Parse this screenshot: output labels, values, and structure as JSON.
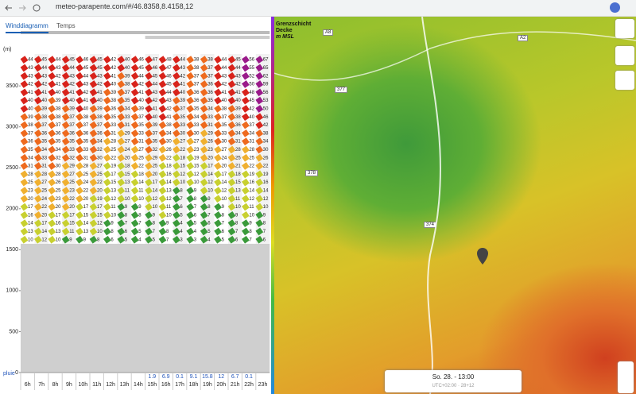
{
  "browser": {
    "url": "meteo-parapente.com/#/46.8358,8.4158,12"
  },
  "tabs": [
    "Winddiagramm",
    "Temps"
  ],
  "winddiagram": {
    "unit": "(m)",
    "rain_label": "pluie",
    "yticks": [
      0,
      500,
      1000,
      1500,
      2000,
      2500,
      3000,
      3500
    ],
    "hours": [
      "6h",
      "7h",
      "8h",
      "9h",
      "10h",
      "11h",
      "12h",
      "13h",
      "14h",
      "15h",
      "16h",
      "17h",
      "18h",
      "19h",
      "20h",
      "21h",
      "22h",
      "23h"
    ],
    "rain": [
      null,
      null,
      null,
      null,
      null,
      null,
      null,
      null,
      null,
      1.9,
      6.9,
      0.1,
      9.1,
      15.8,
      12,
      6.7,
      0.1,
      null
    ],
    "speeds": [
      [
        44,
        43,
        43,
        42,
        41,
        40,
        40,
        39,
        38,
        37,
        36,
        35,
        34,
        31,
        28,
        25,
        23,
        20,
        17,
        16,
        14,
        13,
        10
      ],
      [
        45,
        44,
        43,
        42,
        41,
        40,
        39,
        38,
        37,
        36,
        35,
        34,
        33,
        31,
        28,
        27,
        25,
        24,
        22,
        20,
        17,
        14,
        12
      ],
      [
        44,
        43,
        42,
        41,
        40,
        39,
        38,
        38,
        37,
        36,
        35,
        34,
        32,
        30,
        28,
        26,
        25,
        23,
        20,
        17,
        16,
        13,
        10
      ],
      [
        45,
        44,
        43,
        42,
        41,
        40,
        39,
        37,
        37,
        36,
        35,
        33,
        32,
        29,
        27,
        25,
        23,
        22,
        20,
        17,
        15,
        11,
        9
      ],
      [
        46,
        45,
        44,
        43,
        42,
        41,
        40,
        38,
        37,
        36,
        35,
        33,
        31,
        28,
        25,
        24,
        22,
        20,
        17,
        15,
        14,
        13,
        9
      ],
      [
        45,
        45,
        43,
        42,
        41,
        40,
        39,
        38,
        37,
        36,
        34,
        32,
        30,
        27,
        25,
        22,
        20,
        19,
        17,
        15,
        12,
        10,
        8
      ],
      [
        42,
        42,
        41,
        40,
        39,
        38,
        36,
        35,
        33,
        31,
        28,
        25,
        22,
        19,
        17,
        15,
        13,
        12,
        11,
        10,
        9,
        8,
        6
      ],
      [
        40,
        40,
        39,
        38,
        37,
        35,
        34,
        33,
        31,
        29,
        27,
        24,
        20,
        18,
        15,
        13,
        11,
        10,
        9,
        8,
        7,
        6,
        5
      ],
      [
        46,
        45,
        44,
        42,
        41,
        40,
        39,
        37,
        35,
        33,
        31,
        27,
        25,
        22,
        18,
        14,
        11,
        10,
        9,
        8,
        7,
        5,
        4
      ],
      [
        47,
        46,
        45,
        44,
        43,
        42,
        41,
        40,
        39,
        37,
        35,
        32,
        29,
        25,
        20,
        17,
        14,
        12,
        10,
        9,
        8,
        7,
        5
      ],
      [
        48,
        47,
        46,
        45,
        44,
        43,
        42,
        41,
        38,
        34,
        30,
        26,
        22,
        18,
        16,
        14,
        13,
        12,
        11,
        10,
        9,
        8,
        7
      ],
      [
        44,
        43,
        42,
        41,
        40,
        39,
        37,
        35,
        33,
        30,
        27,
        22,
        18,
        15,
        12,
        10,
        8,
        7,
        6,
        5,
        4,
        4,
        3
      ],
      [
        38,
        38,
        37,
        37,
        36,
        36,
        35,
        34,
        33,
        30,
        27,
        23,
        19,
        15,
        12,
        10,
        9,
        8,
        7,
        6,
        5,
        4,
        3
      ],
      [
        38,
        37,
        37,
        36,
        36,
        35,
        34,
        33,
        31,
        29,
        26,
        23,
        20,
        17,
        14,
        12,
        10,
        9,
        8,
        7,
        6,
        5,
        4
      ],
      [
        44,
        44,
        43,
        42,
        41,
        40,
        38,
        37,
        35,
        33,
        30,
        27,
        24,
        20,
        17,
        14,
        12,
        10,
        9,
        8,
        7,
        6,
        5
      ],
      [
        45,
        44,
        43,
        42,
        41,
        40,
        39,
        38,
        36,
        34,
        31,
        28,
        25,
        21,
        18,
        15,
        13,
        11,
        10,
        9,
        8,
        7,
        6
      ],
      [
        56,
        55,
        52,
        50,
        48,
        45,
        42,
        40,
        37,
        34,
        31,
        28,
        25,
        22,
        19,
        16,
        14,
        12,
        11,
        10,
        9,
        8,
        7
      ],
      [
        67,
        65,
        62,
        59,
        56,
        53,
        50,
        46,
        42,
        38,
        34,
        30,
        26,
        22,
        19,
        16,
        14,
        12,
        10,
        9,
        8,
        7,
        6
      ]
    ]
  },
  "map": {
    "layer": [
      "Grenzschicht",
      "Decke",
      "m MSL"
    ],
    "roads": [
      "377",
      "378",
      "374",
      "A2",
      "A8"
    ],
    "time": "So. 28. - 13:00",
    "timezone": "UTC+02:00 · 28+12"
  }
}
